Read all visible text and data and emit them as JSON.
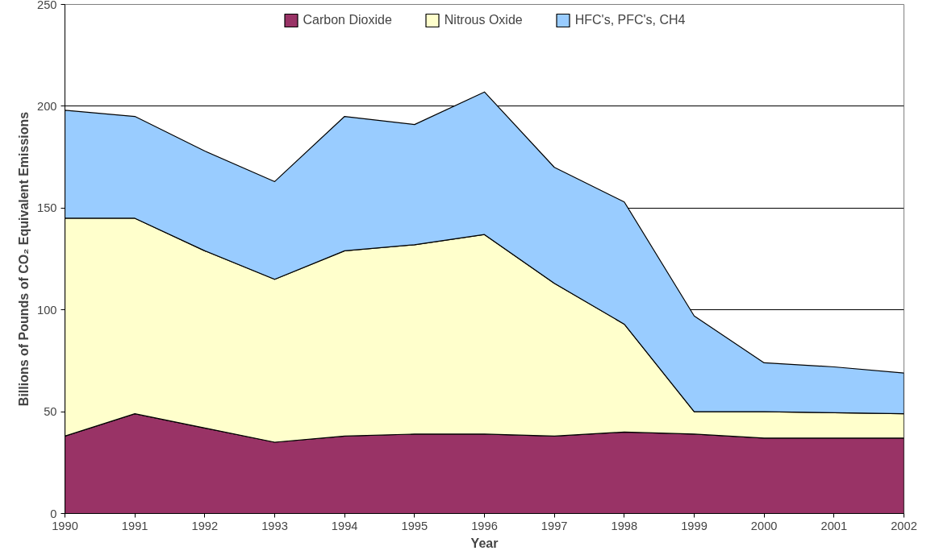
{
  "chart_data": {
    "type": "area",
    "stacked": true,
    "xlabel": "Year",
    "ylabel": "Billions of Pounds of CO₂ Equivalent Emissions",
    "x": [
      1990,
      1991,
      1992,
      1993,
      1994,
      1995,
      1996,
      1997,
      1998,
      1999,
      2000,
      2001,
      2002
    ],
    "series": [
      {
        "name": "Carbon Dioxide",
        "color": "#993366",
        "values": [
          38,
          49,
          42,
          35,
          38,
          39,
          39,
          38,
          40,
          39,
          37,
          37,
          37
        ]
      },
      {
        "name": "Nitrous Oxide",
        "color": "#ffffcc",
        "values": [
          107,
          96,
          87,
          80,
          91,
          93,
          98,
          75,
          53,
          11,
          13,
          12.5,
          12
        ]
      },
      {
        "name": "HFC's, PFC's, CH4",
        "color": "#99ccff",
        "values": [
          53,
          50,
          49,
          48,
          66,
          59,
          70,
          57,
          60,
          47,
          24,
          22.5,
          20
        ]
      }
    ],
    "xlim": [
      1990,
      2002
    ],
    "xticks": [
      1990,
      1991,
      1992,
      1993,
      1994,
      1995,
      1996,
      1997,
      1998,
      1999,
      2000,
      2001,
      2002
    ],
    "ylim": [
      0,
      250
    ],
    "yticks": [
      0,
      50,
      100,
      150,
      200,
      250
    ],
    "grid": "y",
    "legend": "top"
  }
}
